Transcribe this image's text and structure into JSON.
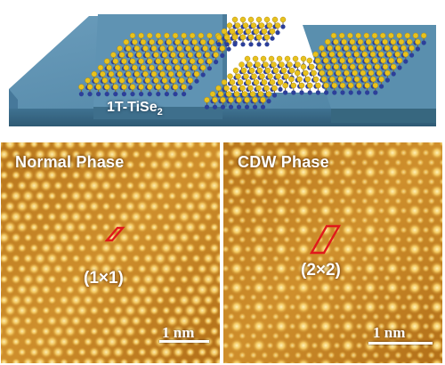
{
  "top_panel": {
    "material_label": "1T-TiSe",
    "material_subscript": "2"
  },
  "normal_phase": {
    "title": "Normal Phase",
    "cell_label": "(1×1)",
    "scale_bar_label": "1 nm"
  },
  "cdw_phase": {
    "title": "CDW Phase",
    "cell_label": "(2×2)",
    "scale_bar_label": "1 nm"
  },
  "colors": {
    "substrate_top": "#5b8fae",
    "substrate_side": "#3e6f8c",
    "stm_base": "#c98a28",
    "stm_bright": "#fff2b8",
    "unit_cell": "#e0191b",
    "ti_atom": "#2c3f9a",
    "se_atom": "#e8c21e"
  }
}
